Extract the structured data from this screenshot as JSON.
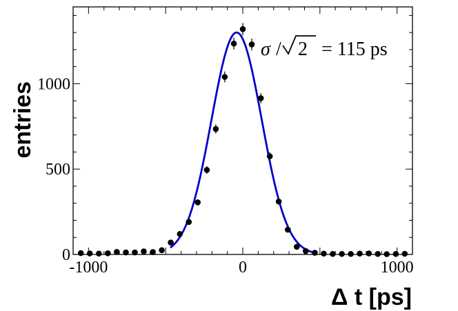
{
  "chart_data": {
    "type": "scatter",
    "xlabel": "Δ t [ps]",
    "ylabel": "entries",
    "xlim": [
      -1100,
      1100
    ],
    "ylim": [
      0,
      1450
    ],
    "x_ticks": [
      -1000,
      0,
      1000
    ],
    "y_ticks": [
      0,
      500,
      1000
    ],
    "grid": false,
    "annotation": {
      "sigma_symbol": "σ",
      "slash": "/",
      "sqrt_symbol": "√",
      "sqrt_arg": "2",
      "rest": "= 115 ps"
    },
    "series": [
      {
        "kind": "points",
        "color": "#000000",
        "x": [
          -1050,
          -992,
          -933,
          -875,
          -817,
          -758,
          -700,
          -642,
          -583,
          -525,
          -467,
          -408,
          -350,
          -292,
          -233,
          -175,
          -117,
          -58,
          0,
          58,
          117,
          175,
          233,
          292,
          350,
          408,
          467,
          525,
          583,
          642,
          700,
          758,
          817,
          875,
          933,
          992,
          1050
        ],
        "y": [
          8,
          6,
          5,
          7,
          15,
          12,
          12,
          18,
          14,
          25,
          70,
          120,
          190,
          305,
          495,
          735,
          1040,
          1235,
          1320,
          1230,
          915,
          575,
          310,
          145,
          45,
          20,
          10,
          5,
          3,
          3,
          3,
          5,
          6,
          3,
          2,
          3,
          4
        ],
        "err": [
          4,
          4,
          4,
          4,
          5,
          5,
          5,
          6,
          5,
          6,
          9,
          12,
          14,
          17,
          22,
          27,
          32,
          35,
          36,
          35,
          30,
          24,
          18,
          12,
          7,
          5,
          4,
          3,
          2,
          2,
          2,
          3,
          3,
          2,
          2,
          2,
          2
        ]
      },
      {
        "kind": "gaussian-fit",
        "color": "#0000cc",
        "amplitude": 1300,
        "mean": -40,
        "sigma": 163,
        "x_range": [
          -470,
          460
        ]
      }
    ]
  }
}
